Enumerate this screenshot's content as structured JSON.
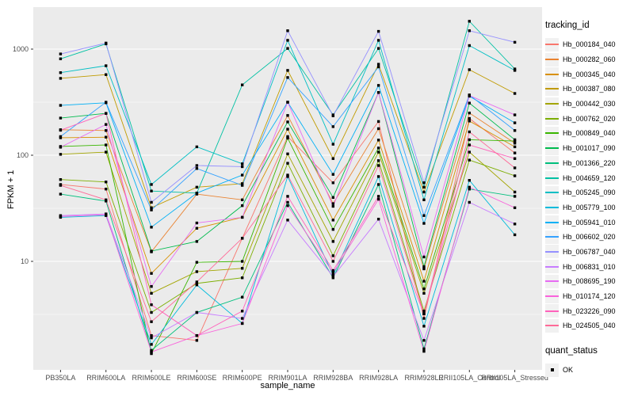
{
  "chart_data": {
    "type": "line",
    "title": "",
    "xlabel": "sample_name",
    "ylabel": "FPKM + 1",
    "y_scale": "log10",
    "grid": true,
    "legend_position": "right",
    "panel_background": "#EBEBEB",
    "gridline_color": "#FFFFFF",
    "point_color": "#000000",
    "y_ticks": [
      {
        "label": "10",
        "value": 10
      },
      {
        "label": "100",
        "value": 100
      },
      {
        "label": "1000",
        "value": 1000
      }
    ],
    "y_minor_gridlines": [
      3.162,
      31.62,
      316.2
    ],
    "ylim": [
      1.03,
      2400
    ],
    "categories": [
      "PB350LA",
      "RRIM600LA",
      "RRIM600LE",
      "RRIM600SE",
      "RRIM600PE",
      "RRIM901LA",
      "RRIM928BA",
      "RRIM928LA",
      "RRIM928LE",
      "RRII105LA_Control",
      "RRII105LA_Stressed"
    ],
    "legend_title": "tracking_id",
    "series": [
      {
        "name": "Hb_000184_040",
        "color": "#F8766D",
        "values": [
          53,
          48,
          2.0,
          1.8,
          16.5,
          150,
          55,
          208,
          2.9,
          222,
          105
        ]
      },
      {
        "name": "Hb_000282_060",
        "color": "#EA8331",
        "values": [
          174,
          171,
          12.3,
          43,
          38,
          237,
          35,
          178,
          8.5,
          250,
          130
        ]
      },
      {
        "name": "Hb_000345_040",
        "color": "#D89000",
        "values": [
          146,
          148,
          7.7,
          20.5,
          26,
          176,
          24.5,
          139,
          6.5,
          210,
          120
        ]
      },
      {
        "name": "Hb_000387_080",
        "color": "#C09B00",
        "values": [
          530,
          575,
          32,
          50,
          54,
          630,
          93,
          720,
          45,
          640,
          382
        ]
      },
      {
        "name": "Hb_000442_030",
        "color": "#A3A500",
        "values": [
          102,
          107,
          5.0,
          8.0,
          8.6,
          103,
          15.4,
          107,
          5.0,
          107,
          45
        ]
      },
      {
        "name": "Hb_000762_020",
        "color": "#7CAE00",
        "values": [
          59,
          56,
          3.3,
          6.2,
          7.0,
          84,
          11.3,
          89,
          3.4,
          90,
          64
        ]
      },
      {
        "name": "Hb_000849_040",
        "color": "#39B600",
        "values": [
          121,
          125,
          1.35,
          9.8,
          10,
          145,
          20,
          117,
          5.5,
          140,
          136
        ]
      },
      {
        "name": "Hb_001017_090",
        "color": "#00BB4E",
        "values": [
          224,
          248,
          12.5,
          15.4,
          33.5,
          206,
          40,
          390,
          8.9,
          310,
          140
        ]
      },
      {
        "name": "Hb_001366_220",
        "color": "#00BF7D",
        "values": [
          43,
          37,
          1.45,
          3.3,
          4.6,
          36,
          7.0,
          53,
          1.5,
          48,
          41
        ]
      },
      {
        "name": "Hb_004659_120",
        "color": "#00C1A3",
        "values": [
          810,
          1120,
          46,
          44,
          460,
          1015,
          240,
          1015,
          50,
          1830,
          650
        ]
      },
      {
        "name": "Hb_005245_090",
        "color": "#00BFC4",
        "values": [
          600,
          697,
          53,
          120,
          83,
          1210,
          127,
          1210,
          38,
          1080,
          630
        ]
      },
      {
        "name": "Hb_005779_100",
        "color": "#00BBDC",
        "values": [
          26,
          27,
          1.65,
          6.0,
          2.6,
          63,
          7.4,
          63,
          2.45,
          58,
          17.8
        ]
      },
      {
        "name": "Hb_005941_010",
        "color": "#00B0F6",
        "values": [
          295,
          312,
          21,
          44,
          65,
          316,
          66,
          455,
          22.8,
          360,
          202
        ]
      },
      {
        "name": "Hb_006602_020",
        "color": "#35A2FF",
        "values": [
          150,
          316,
          30.5,
          75,
          52,
          540,
          186,
          680,
          27,
          370,
          171
        ]
      },
      {
        "name": "Hb_006787_040",
        "color": "#9590FF",
        "values": [
          900,
          1140,
          36,
          80,
          78,
          1490,
          235,
          1470,
          55,
          1490,
          1160
        ]
      },
      {
        "name": "Hb_006831_010",
        "color": "#C77CFF",
        "values": [
          27,
          28,
          1.9,
          3.3,
          2.9,
          24.5,
          7.2,
          25,
          1.8,
          36,
          22.5
        ]
      },
      {
        "name": "Hb_008695_190",
        "color": "#E76BF3",
        "values": [
          119,
          195,
          5.8,
          23,
          26,
          316,
          33,
          390,
          11,
          365,
          240
        ]
      },
      {
        "name": "Hb_010174_120",
        "color": "#FA62DB",
        "values": [
          26.5,
          27.5,
          1.4,
          2.0,
          2.6,
          33.5,
          7.8,
          38.5,
          1.42,
          50,
          32
        ]
      },
      {
        "name": "Hb_023226_090",
        "color": "#FF62BC",
        "values": [
          172,
          248,
          3.9,
          2.0,
          3.4,
          41,
          8.2,
          41,
          3.2,
          125,
          93
        ]
      },
      {
        "name": "Hb_024505_040",
        "color": "#FF6A98",
        "values": [
          52,
          38,
          2.7,
          6.4,
          16.5,
          65,
          10,
          80,
          3.2,
          166,
          76
        ]
      }
    ],
    "quant_legend": {
      "title": "quant_status",
      "items": [
        {
          "label": "OK"
        }
      ]
    }
  }
}
